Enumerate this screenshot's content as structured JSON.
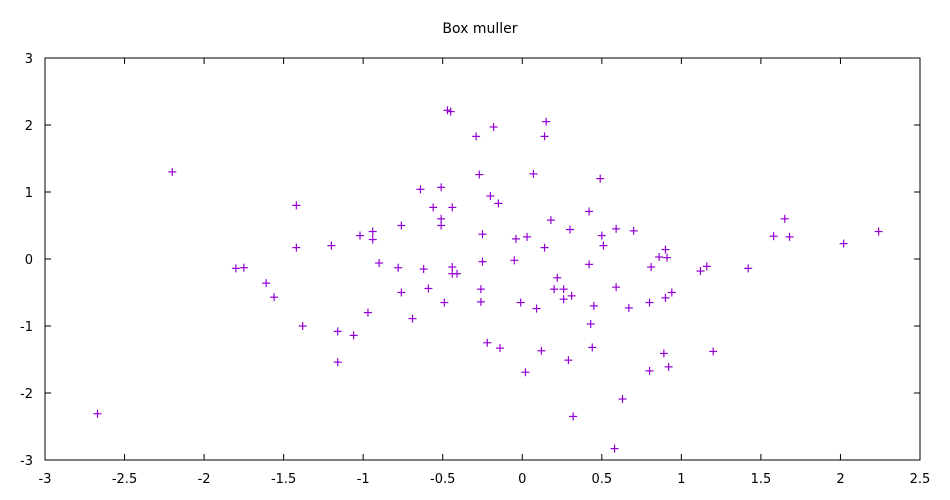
{
  "chart_data": {
    "type": "scatter",
    "title": "Box muller",
    "xlabel": "",
    "ylabel": "",
    "xlim": [
      -3,
      2.5
    ],
    "ylim": [
      -3,
      3
    ],
    "xticks": [
      "-3",
      "-2.5",
      "-2",
      "-1.5",
      "-1",
      "-0.5",
      "0",
      "0.5",
      "1",
      "1.5",
      "2",
      "2.5"
    ],
    "xtick_values": [
      -3,
      -2.5,
      -2,
      -1.5,
      -1,
      -0.5,
      0,
      0.5,
      1,
      1.5,
      2,
      2.5
    ],
    "yticks": [
      "3",
      "2",
      "1",
      "0",
      "-1",
      "-2",
      "-3"
    ],
    "ytick_values": [
      3,
      2,
      1,
      0,
      -1,
      -2,
      -3
    ],
    "grid": false,
    "marker": "+",
    "color": "#9400d3",
    "series": [
      {
        "points": [
          [
            -2.67,
            -2.31
          ],
          [
            -2.2,
            1.3
          ],
          [
            -1.8,
            -0.14
          ],
          [
            -1.75,
            -0.13
          ],
          [
            -1.61,
            -0.36
          ],
          [
            -1.56,
            -0.57
          ],
          [
            -1.42,
            0.8
          ],
          [
            -1.42,
            0.17
          ],
          [
            -1.38,
            -1.0
          ],
          [
            -1.2,
            0.2
          ],
          [
            -1.16,
            -1.08
          ],
          [
            -1.16,
            -1.54
          ],
          [
            -1.06,
            -1.14
          ],
          [
            -1.02,
            0.35
          ],
          [
            -0.97,
            -0.8
          ],
          [
            -0.94,
            0.41
          ],
          [
            -0.94,
            0.29
          ],
          [
            -0.9,
            -0.06
          ],
          [
            -0.78,
            -0.13
          ],
          [
            -0.76,
            0.5
          ],
          [
            -0.76,
            -0.5
          ],
          [
            -0.69,
            -0.89
          ],
          [
            -0.64,
            1.04
          ],
          [
            -0.62,
            -0.15
          ],
          [
            -0.59,
            -0.44
          ],
          [
            -0.56,
            0.77
          ],
          [
            -0.51,
            1.07
          ],
          [
            -0.51,
            0.6
          ],
          [
            -0.51,
            0.5
          ],
          [
            -0.49,
            -0.65
          ],
          [
            -0.47,
            2.22
          ],
          [
            -0.45,
            2.2
          ],
          [
            -0.44,
            0.77
          ],
          [
            -0.44,
            -0.12
          ],
          [
            -0.44,
            -0.22
          ],
          [
            -0.41,
            -0.22
          ],
          [
            -0.29,
            1.83
          ],
          [
            -0.27,
            1.26
          ],
          [
            -0.26,
            -0.64
          ],
          [
            -0.26,
            -0.45
          ],
          [
            -0.25,
            0.37
          ],
          [
            -0.25,
            -0.04
          ],
          [
            -0.22,
            -1.25
          ],
          [
            -0.2,
            0.94
          ],
          [
            -0.18,
            1.97
          ],
          [
            -0.15,
            0.83
          ],
          [
            -0.14,
            -1.33
          ],
          [
            -0.05,
            -0.02
          ],
          [
            -0.04,
            0.3
          ],
          [
            -0.01,
            -0.65
          ],
          [
            0.02,
            -1.69
          ],
          [
            0.03,
            0.33
          ],
          [
            0.07,
            1.27
          ],
          [
            0.09,
            -0.74
          ],
          [
            0.12,
            -1.37
          ],
          [
            0.14,
            0.17
          ],
          [
            0.14,
            1.83
          ],
          [
            0.15,
            2.05
          ],
          [
            0.18,
            0.58
          ],
          [
            0.2,
            -0.45
          ],
          [
            0.22,
            -0.28
          ],
          [
            0.26,
            -0.6
          ],
          [
            0.26,
            -0.45
          ],
          [
            0.29,
            -1.51
          ],
          [
            0.3,
            0.44
          ],
          [
            0.31,
            -0.55
          ],
          [
            0.32,
            -2.35
          ],
          [
            0.42,
            0.71
          ],
          [
            0.42,
            -0.08
          ],
          [
            0.43,
            -0.97
          ],
          [
            0.44,
            -1.32
          ],
          [
            0.45,
            -0.7
          ],
          [
            0.49,
            1.2
          ],
          [
            0.5,
            0.35
          ],
          [
            0.51,
            0.2
          ],
          [
            0.58,
            -2.83
          ],
          [
            0.59,
            0.45
          ],
          [
            0.59,
            -0.42
          ],
          [
            0.63,
            -2.09
          ],
          [
            0.67,
            -0.73
          ],
          [
            0.7,
            0.42
          ],
          [
            0.8,
            -0.65
          ],
          [
            0.8,
            -1.67
          ],
          [
            0.81,
            -0.12
          ],
          [
            0.86,
            0.03
          ],
          [
            0.89,
            -1.41
          ],
          [
            0.9,
            0.14
          ],
          [
            0.9,
            -0.58
          ],
          [
            0.91,
            0.02
          ],
          [
            0.92,
            -1.61
          ],
          [
            0.94,
            -0.5
          ],
          [
            1.12,
            -0.18
          ],
          [
            1.16,
            -0.11
          ],
          [
            1.2,
            -1.38
          ],
          [
            1.42,
            -0.14
          ],
          [
            1.58,
            0.34
          ],
          [
            1.65,
            0.6
          ],
          [
            1.68,
            0.33
          ],
          [
            2.02,
            0.23
          ],
          [
            2.24,
            0.41
          ]
        ]
      }
    ]
  }
}
